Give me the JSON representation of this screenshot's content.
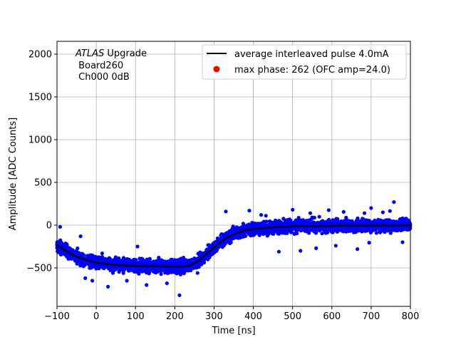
{
  "chart_data": {
    "type": "scatter",
    "xlabel": "Time [ns]",
    "ylabel": "Amplitude [ADC Counts]",
    "xlim": [
      -100,
      800
    ],
    "ylim": [
      -950,
      2150
    ],
    "xticks": [
      "−100",
      "0",
      "100",
      "200",
      "300",
      "400",
      "500",
      "600",
      "700",
      "800"
    ],
    "xtick_values": [
      -100,
      0,
      100,
      200,
      300,
      400,
      500,
      600,
      700,
      800
    ],
    "yticks": [
      "−500",
      "0",
      "500",
      "1000",
      "1500",
      "2000"
    ],
    "ytick_values": [
      -500,
      0,
      500,
      1000,
      1500,
      2000
    ],
    "grid": true,
    "legend_position": "top-right",
    "annotation": {
      "line1_italic": "ATLAS",
      "line1_rest": " Upgrade",
      "line2": " Board260",
      "line3": " Ch000 0dB"
    },
    "series": [
      {
        "name": "average interleaved pulse 4.0mA",
        "kind": "line",
        "color": "#000000",
        "x": [
          -100,
          -75,
          -50,
          -25,
          0,
          25,
          50,
          75,
          100,
          125,
          150,
          175,
          200,
          225,
          240,
          260,
          280,
          300,
          320,
          340,
          360,
          380,
          400,
          425,
          450,
          475,
          500,
          550,
          600,
          650,
          700,
          750,
          800
        ],
        "y": [
          -230,
          -310,
          -370,
          -410,
          -440,
          -455,
          -465,
          -470,
          -475,
          -478,
          -482,
          -485,
          -485,
          -485,
          -470,
          -420,
          -340,
          -260,
          -190,
          -130,
          -90,
          -60,
          -45,
          -35,
          -25,
          -20,
          -15,
          -10,
          -8,
          -6,
          -5,
          -3,
          -2
        ]
      },
      {
        "name": "max phase: 262 (OFC amp=24.0)",
        "kind": "marker",
        "color": "#ff0000"
      },
      {
        "name": "samples",
        "kind": "scatter",
        "color": "#0000ff",
        "spread": 65,
        "outliers": [
          [
            -92,
            -20
          ],
          [
            -40,
            -130
          ],
          [
            -28,
            -620
          ],
          [
            -10,
            -650
          ],
          [
            30,
            -720
          ],
          [
            78,
            -650
          ],
          [
            128,
            -700
          ],
          [
            180,
            -680
          ],
          [
            212,
            -820
          ],
          [
            258,
            -560
          ],
          [
            330,
            160
          ],
          [
            390,
            170
          ],
          [
            420,
            120
          ],
          [
            432,
            110
          ],
          [
            500,
            180
          ],
          [
            545,
            140
          ],
          [
            592,
            175
          ],
          [
            630,
            155
          ],
          [
            683,
            140
          ],
          [
            700,
            200
          ],
          [
            730,
            150
          ],
          [
            748,
            165
          ],
          [
            758,
            270
          ],
          [
            780,
            -200
          ],
          [
            465,
            -310
          ],
          [
            520,
            -300
          ],
          [
            560,
            -270
          ],
          [
            610,
            -240
          ],
          [
            665,
            -280
          ],
          [
            695,
            -205
          ],
          [
            15,
            -330
          ],
          [
            105,
            -250
          ]
        ]
      }
    ]
  }
}
